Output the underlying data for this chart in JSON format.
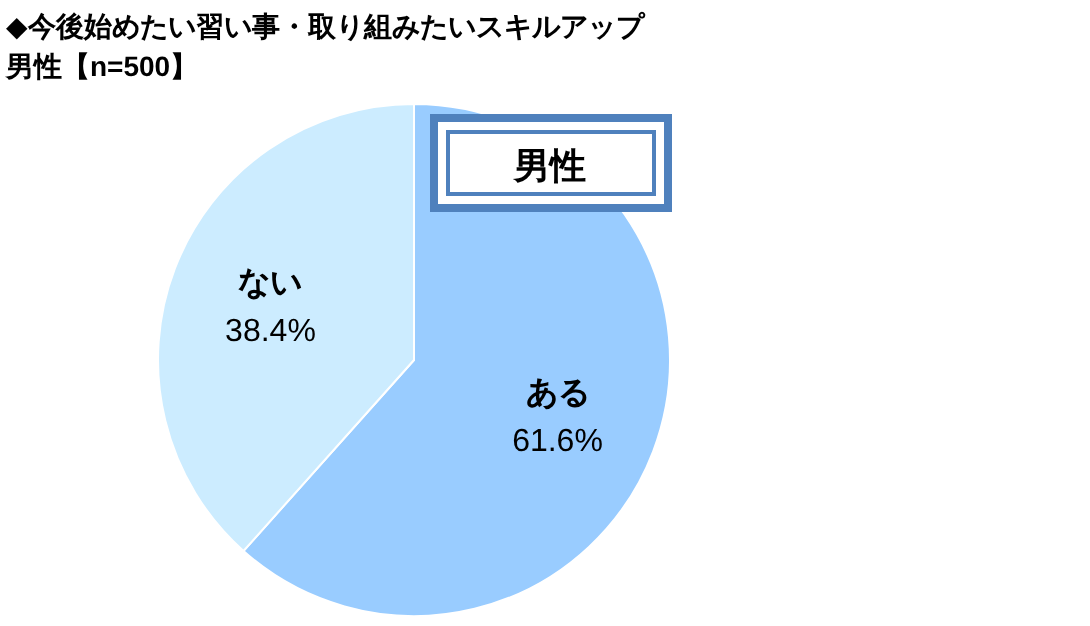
{
  "chart_data": {
    "type": "pie",
    "title": "◆今後始めたい習い事・取り組みたいスキルアップ",
    "subtitle": "男性【n=500】",
    "categories": [
      "ある",
      "ない"
    ],
    "values": [
      61.6,
      38.4
    ],
    "colors": [
      "#99ccff",
      "#ccecff"
    ],
    "value_labels": [
      "61.6%",
      "38.4%"
    ],
    "annotations": [
      "男性"
    ]
  }
}
